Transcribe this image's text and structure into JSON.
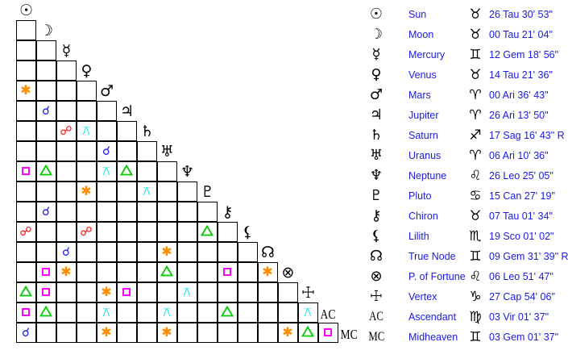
{
  "points": [
    {
      "name": "Sun",
      "glyph": "☉",
      "sign_glyph": "♉",
      "position": "26 Tau 30' 53\""
    },
    {
      "name": "Moon",
      "glyph": "☽",
      "sign_glyph": "♉",
      "position": "00 Tau 21' 04\""
    },
    {
      "name": "Mercury",
      "glyph": "☿",
      "sign_glyph": "♊",
      "position": "12 Gem 18' 56\""
    },
    {
      "name": "Venus",
      "glyph": "♀",
      "sign_glyph": "♉",
      "position": "14 Tau 21' 36\""
    },
    {
      "name": "Mars",
      "glyph": "♂",
      "sign_glyph": "♈",
      "position": "00 Ari 36' 43\""
    },
    {
      "name": "Jupiter",
      "glyph": "♃",
      "sign_glyph": "♈",
      "position": "26 Ari 13' 50\""
    },
    {
      "name": "Saturn",
      "glyph": "♄",
      "sign_glyph": "♐",
      "position": "17 Sag 16' 43\" R"
    },
    {
      "name": "Uranus",
      "glyph": "♅",
      "sign_glyph": "♈",
      "position": "06 Ari 10' 36\""
    },
    {
      "name": "Neptune",
      "glyph": "♆",
      "sign_glyph": "♌",
      "position": "26 Leo 25' 05\""
    },
    {
      "name": "Pluto",
      "glyph": "♇",
      "sign_glyph": "♋",
      "position": "15 Can 27' 19\""
    },
    {
      "name": "Chiron",
      "glyph": "⚷",
      "sign_glyph": "♉",
      "position": "07 Tau 01' 34\""
    },
    {
      "name": "Lilith",
      "glyph": "⚸",
      "sign_glyph": "♏",
      "position": "19 Sco 01' 02\""
    },
    {
      "name": "True Node",
      "glyph": "☊",
      "sign_glyph": "♊",
      "position": "09 Gem 31' 39\" R"
    },
    {
      "name": "P. of Fortune",
      "glyph": "⊗",
      "sign_glyph": "♌",
      "position": "06 Leo 51' 47\""
    },
    {
      "name": "Vertex",
      "glyph": "☩",
      "sign_glyph": "♑",
      "position": "27 Cap 54' 06\""
    },
    {
      "name": "Ascendant",
      "glyph": "AC",
      "sign_glyph": "♍",
      "position": "03 Vir 01' 37\""
    },
    {
      "name": "Midheaven",
      "glyph": "MC",
      "sign_glyph": "♊",
      "position": "03 Gem 01' 37\""
    }
  ],
  "aspect_styles": {
    "conjunction": {
      "glyph": "☌",
      "color": "#1a1ae6"
    },
    "opposition": {
      "glyph": "☍",
      "color": "#ff0000"
    },
    "quincunx": {
      "glyph": "⚻",
      "color": "#00e5e5"
    },
    "sextile": {
      "glyph": "✱",
      "color": "#ff8c00"
    },
    "square": {
      "glyph": "□",
      "color": "#ff00ff"
    },
    "trine": {
      "glyph": "△",
      "color": "#00cc00"
    }
  },
  "aspects": [
    [
      "Mars",
      "Sun",
      "sextile"
    ],
    [
      "Jupiter",
      "Moon",
      "conjunction"
    ],
    [
      "Saturn",
      "Mercury",
      "opposition"
    ],
    [
      "Saturn",
      "Venus",
      "quincunx"
    ],
    [
      "Uranus",
      "Mars",
      "conjunction"
    ],
    [
      "Neptune",
      "Sun",
      "square"
    ],
    [
      "Neptune",
      "Moon",
      "trine"
    ],
    [
      "Neptune",
      "Mars",
      "quincunx"
    ],
    [
      "Neptune",
      "Jupiter",
      "trine"
    ],
    [
      "Pluto",
      "Venus",
      "sextile"
    ],
    [
      "Pluto",
      "Saturn",
      "quincunx"
    ],
    [
      "Chiron",
      "Moon",
      "conjunction"
    ],
    [
      "Lilith",
      "Sun",
      "opposition"
    ],
    [
      "Lilith",
      "Venus",
      "opposition"
    ],
    [
      "Lilith",
      "Pluto",
      "trine"
    ],
    [
      "True Node",
      "Mercury",
      "conjunction"
    ],
    [
      "True Node",
      "Uranus",
      "sextile"
    ],
    [
      "P. of Fortune",
      "Moon",
      "square"
    ],
    [
      "P. of Fortune",
      "Mercury",
      "sextile"
    ],
    [
      "P. of Fortune",
      "Uranus",
      "trine"
    ],
    [
      "P. of Fortune",
      "Chiron",
      "square"
    ],
    [
      "P. of Fortune",
      "True Node",
      "sextile"
    ],
    [
      "Vertex",
      "Sun",
      "trine"
    ],
    [
      "Vertex",
      "Moon",
      "square"
    ],
    [
      "Vertex",
      "Mars",
      "sextile"
    ],
    [
      "Vertex",
      "Jupiter",
      "square"
    ],
    [
      "Vertex",
      "Neptune",
      "quincunx"
    ],
    [
      "Ascendant",
      "Sun",
      "square"
    ],
    [
      "Ascendant",
      "Moon",
      "trine"
    ],
    [
      "Ascendant",
      "Mars",
      "quincunx"
    ],
    [
      "Ascendant",
      "Uranus",
      "quincunx"
    ],
    [
      "Ascendant",
      "Chiron",
      "trine"
    ],
    [
      "Ascendant",
      "Vertex",
      "quincunx"
    ],
    [
      "Midheaven",
      "Sun",
      "conjunction"
    ],
    [
      "Midheaven",
      "Mars",
      "sextile"
    ],
    [
      "Midheaven",
      "Uranus",
      "sextile"
    ],
    [
      "Midheaven",
      "P. of Fortune",
      "sextile"
    ],
    [
      "Midheaven",
      "Vertex",
      "trine"
    ],
    [
      "Midheaven",
      "Ascendant",
      "square"
    ]
  ]
}
